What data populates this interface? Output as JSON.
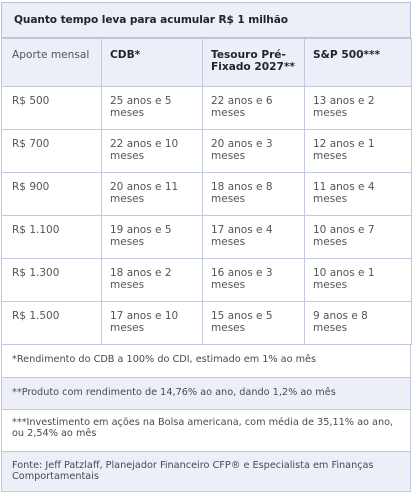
{
  "title": "Quanto tempo leva para acumular R$ 1 milhão",
  "headers": [
    "Aporte mensal",
    "CDB*",
    "Tesouro Pré-Fixado 2027**",
    "S&P 500***"
  ],
  "rows": [
    {
      "aporte": "R$ 500",
      "cdb": "25 anos e 5 meses",
      "tesouro": "22 anos e 6 meses",
      "sp": "13 anos e 2 meses"
    },
    {
      "aporte": "R$ 700",
      "cdb": "22 anos e 10 meses",
      "tesouro": "20 anos e 3 meses",
      "sp": "12 anos e 1 meses"
    },
    {
      "aporte": "R$ 900",
      "cdb": "20 anos e 11 meses",
      "tesouro": "18 anos e 8 meses",
      "sp": "11 anos e 4 meses"
    },
    {
      "aporte": "R$ 1.100",
      "cdb": "19 anos e 5 meses",
      "tesouro": "17 anos e 4 meses",
      "sp": "10 anos e 7 meses"
    },
    {
      "aporte": "R$ 1.300",
      "cdb": "18 anos e 2 meses",
      "tesouro": "16 anos e 3 meses",
      "sp": "10 anos e 1 meses"
    },
    {
      "aporte": "R$ 1.500",
      "cdb": "17 anos e 10 meses",
      "tesouro": "15 anos e 5 meses",
      "sp": "9 anos e 8 meses"
    }
  ],
  "notes": [
    "*Rendimento do CDB a 100% do CDI, estimado em 1% ao mês",
    "**Produto com rendimento de 14,76% ao ano, dando 1,2% ao mês",
    "***Investimento em ações na Bolsa americana, com média de 35,11% ao ano, ou 2,54% ao mês",
    "Fonte: Jeff Patzlaff, Planejador Financeiro CFP® e Especialista em Finanças Comportamentais"
  ]
}
